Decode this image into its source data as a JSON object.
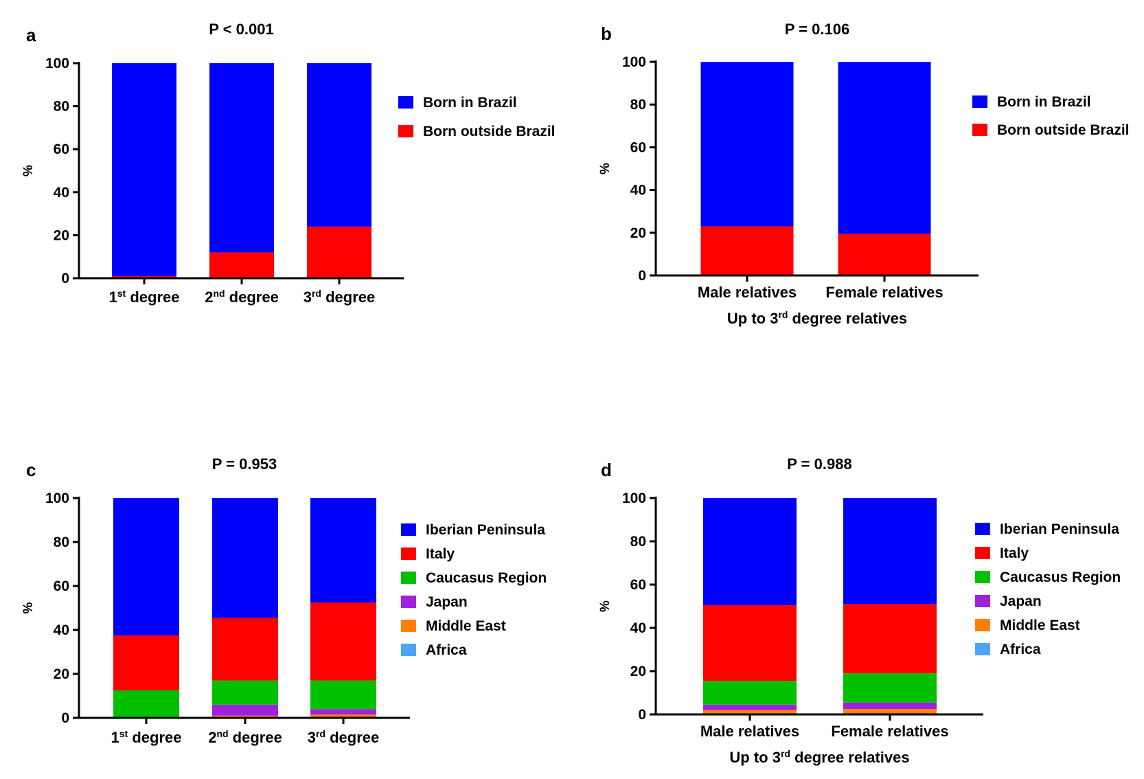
{
  "chart_data": [
    {
      "panel_label": "a",
      "type": "bar",
      "stacked": true,
      "title": "P < 0.001",
      "ylabel": "%",
      "xlabel": "",
      "ylim": [
        0,
        100
      ],
      "yticks": [
        0,
        20,
        40,
        60,
        80,
        100
      ],
      "categories": [
        {
          "base": "1",
          "sup": "st",
          "rest": " degree"
        },
        {
          "base": "2",
          "sup": "nd",
          "rest": " degree"
        },
        {
          "base": "3",
          "sup": "rd",
          "rest": " degree"
        }
      ],
      "series": [
        {
          "name": "Born outside Brazil",
          "color": "#ff0000",
          "values": [
            1,
            12,
            24
          ]
        },
        {
          "name": "Born in Brazil",
          "color": "#0000ff",
          "values": [
            99,
            88,
            76
          ]
        }
      ],
      "legend": [
        "Born in Brazil",
        "Born outside Brazil"
      ],
      "legend_position": "right"
    },
    {
      "panel_label": "b",
      "type": "bar",
      "stacked": true,
      "title": "P = 0.106",
      "ylabel": "%",
      "xlabel": {
        "base": "Up to 3",
        "sup": "rd",
        "rest": " degree relatives"
      },
      "ylim": [
        0,
        100
      ],
      "yticks": [
        0,
        20,
        40,
        60,
        80,
        100
      ],
      "categories": [
        {
          "base": "Male relatives",
          "sup": "",
          "rest": ""
        },
        {
          "base": "Female relatives",
          "sup": "",
          "rest": ""
        }
      ],
      "series": [
        {
          "name": "Born outside Brazil",
          "color": "#ff0000",
          "values": [
            23,
            19.5
          ]
        },
        {
          "name": "Born in Brazil",
          "color": "#0000ff",
          "values": [
            77,
            80.5
          ]
        }
      ],
      "legend": [
        "Born in Brazil",
        "Born outside Brazil"
      ],
      "legend_position": "right"
    },
    {
      "panel_label": "c",
      "type": "bar",
      "stacked": true,
      "title": "P = 0.953",
      "ylabel": "%",
      "xlabel": "",
      "ylim": [
        0,
        100
      ],
      "yticks": [
        0,
        20,
        40,
        60,
        80,
        100
      ],
      "categories": [
        {
          "base": "1",
          "sup": "st",
          "rest": " degree"
        },
        {
          "base": "2",
          "sup": "nd",
          "rest": " degree"
        },
        {
          "base": "3",
          "sup": "rd",
          "rest": " degree"
        }
      ],
      "series": [
        {
          "name": "Africa",
          "color": "#4ea5f7",
          "values": [
            0,
            0,
            0
          ]
        },
        {
          "name": "Middle East",
          "color": "#ff8000",
          "values": [
            0,
            1,
            1.5
          ]
        },
        {
          "name": "Japan",
          "color": "#a020e0",
          "values": [
            0,
            5,
            2.5
          ]
        },
        {
          "name": "Caucasus Region",
          "color": "#00c000",
          "values": [
            12.5,
            11,
            13
          ]
        },
        {
          "name": "Italy",
          "color": "#ff0000",
          "values": [
            25,
            28.5,
            35.5
          ]
        },
        {
          "name": "Iberian Peninsula",
          "color": "#0000ff",
          "values": [
            62.5,
            54.5,
            47.5
          ]
        }
      ],
      "legend": [
        "Iberian Peninsula",
        "Italy",
        "Caucasus Region",
        "Japan",
        "Middle East",
        "Africa"
      ],
      "legend_position": "right"
    },
    {
      "panel_label": "d",
      "type": "bar",
      "stacked": true,
      "title": "P = 0.988",
      "ylabel": "%",
      "xlabel": {
        "base": "Up to 3",
        "sup": "rd",
        "rest": " degree relatives"
      },
      "ylim": [
        0,
        100
      ],
      "yticks": [
        0,
        20,
        40,
        60,
        80,
        100
      ],
      "categories": [
        {
          "base": "Male relatives",
          "sup": "",
          "rest": ""
        },
        {
          "base": "Female relatives",
          "sup": "",
          "rest": ""
        }
      ],
      "series": [
        {
          "name": "Africa",
          "color": "#4ea5f7",
          "values": [
            0,
            0
          ]
        },
        {
          "name": "Middle East",
          "color": "#ff8000",
          "values": [
            2,
            2.5
          ]
        },
        {
          "name": "Japan",
          "color": "#a020e0",
          "values": [
            2.5,
            3
          ]
        },
        {
          "name": "Caucasus Region",
          "color": "#00c000",
          "values": [
            11,
            13.5
          ]
        },
        {
          "name": "Italy",
          "color": "#ff0000",
          "values": [
            35,
            32
          ]
        },
        {
          "name": "Iberian Peninsula",
          "color": "#0000ff",
          "values": [
            49.5,
            49
          ]
        }
      ],
      "legend": [
        "Iberian Peninsula",
        "Italy",
        "Caucasus Region",
        "Japan",
        "Middle East",
        "Africa"
      ],
      "legend_position": "right"
    }
  ]
}
